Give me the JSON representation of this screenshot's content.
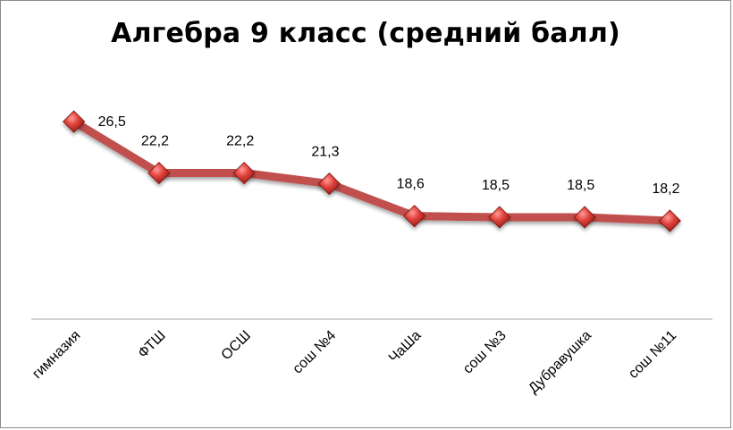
{
  "chart_data": {
    "type": "line",
    "title": "Алгебра 9 класс (средний балл)",
    "categories": [
      "гимназия",
      "ФТШ",
      "ОСШ",
      "сош №4",
      "ЧаШа",
      "сош №3",
      "Дубравушка",
      "сош №11"
    ],
    "series": [
      {
        "values": [
          26.5,
          22.2,
          22.2,
          21.3,
          18.6,
          18.5,
          18.5,
          18.2
        ],
        "data_labels": [
          "26,5",
          "22,2",
          "22,2",
          "21,3",
          "18,6",
          "18,5",
          "18,5",
          "18,2"
        ]
      }
    ],
    "xlabel": "",
    "ylabel": "",
    "ylim": [
      0,
      30
    ],
    "grid": false,
    "legend": "none",
    "line_color": "#c0504d",
    "marker_color": "#c0302c",
    "axis_color": "#a6a6a6"
  }
}
